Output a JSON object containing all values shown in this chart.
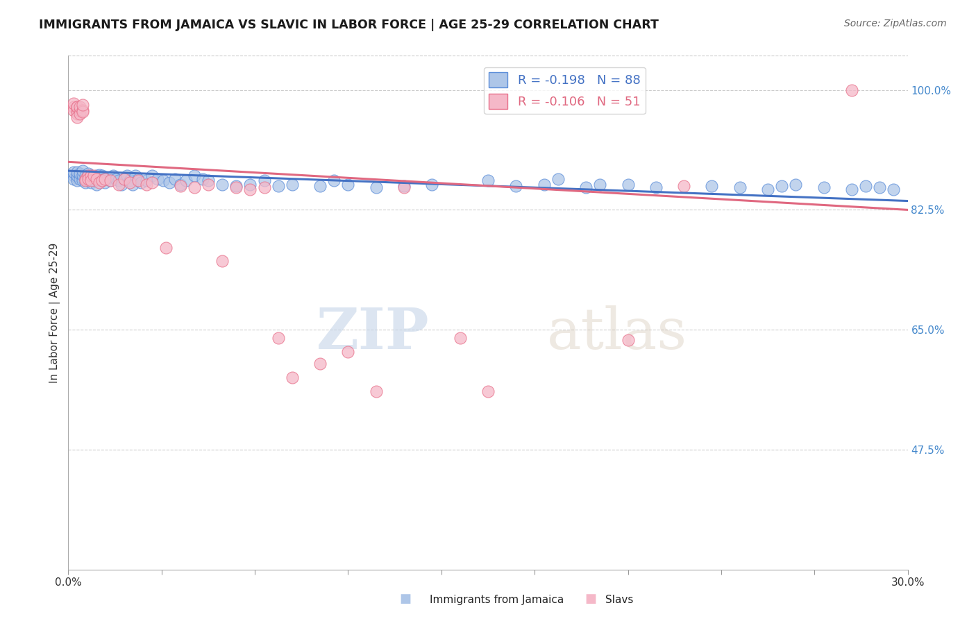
{
  "title": "IMMIGRANTS FROM JAMAICA VS SLAVIC IN LABOR FORCE | AGE 25-29 CORRELATION CHART",
  "source": "Source: ZipAtlas.com",
  "ylabel": "In Labor Force | Age 25-29",
  "x_min": 0.0,
  "x_max": 0.3,
  "y_min": 0.3,
  "y_max": 1.05,
  "right_yticks": [
    1.0,
    0.825,
    0.65,
    0.475
  ],
  "right_yticklabels": [
    "100.0%",
    "82.5%",
    "65.0%",
    "47.5%"
  ],
  "xticklabels_show": [
    "0.0%",
    "30.0%"
  ],
  "legend_blue_label": "R = -0.198   N = 88",
  "legend_pink_label": "R = -0.106   N = 51",
  "blue_color": "#aec6e8",
  "blue_edge_color": "#5b8dd9",
  "pink_color": "#f5b8c8",
  "pink_edge_color": "#e8708a",
  "blue_line_color": "#4472c4",
  "pink_line_color": "#e06880",
  "watermark_zip": "ZIP",
  "watermark_atlas": "atlas",
  "blue_scatter_x": [
    0.002,
    0.002,
    0.002,
    0.003,
    0.003,
    0.003,
    0.003,
    0.004,
    0.004,
    0.004,
    0.005,
    0.005,
    0.005,
    0.005,
    0.006,
    0.006,
    0.006,
    0.007,
    0.007,
    0.007,
    0.008,
    0.008,
    0.008,
    0.009,
    0.009,
    0.01,
    0.01,
    0.01,
    0.011,
    0.011,
    0.012,
    0.012,
    0.013,
    0.013,
    0.014,
    0.015,
    0.016,
    0.017,
    0.018,
    0.019,
    0.02,
    0.021,
    0.022,
    0.023,
    0.024,
    0.025,
    0.026,
    0.028,
    0.03,
    0.032,
    0.034,
    0.036,
    0.038,
    0.04,
    0.042,
    0.045,
    0.048,
    0.05,
    0.055,
    0.06,
    0.065,
    0.07,
    0.075,
    0.08,
    0.09,
    0.095,
    0.1,
    0.11,
    0.12,
    0.13,
    0.15,
    0.16,
    0.17,
    0.175,
    0.185,
    0.19,
    0.2,
    0.21,
    0.23,
    0.24,
    0.25,
    0.255,
    0.26,
    0.27,
    0.28,
    0.285,
    0.29,
    0.295
  ],
  "blue_scatter_y": [
    0.875,
    0.87,
    0.88,
    0.872,
    0.868,
    0.875,
    0.88,
    0.875,
    0.87,
    0.878,
    0.872,
    0.868,
    0.876,
    0.882,
    0.87,
    0.875,
    0.865,
    0.872,
    0.868,
    0.878,
    0.87,
    0.865,
    0.875,
    0.868,
    0.872,
    0.875,
    0.868,
    0.862,
    0.87,
    0.876,
    0.868,
    0.875,
    0.87,
    0.865,
    0.872,
    0.868,
    0.875,
    0.87,
    0.868,
    0.862,
    0.87,
    0.875,
    0.868,
    0.862,
    0.875,
    0.87,
    0.865,
    0.868,
    0.875,
    0.87,
    0.868,
    0.865,
    0.87,
    0.862,
    0.868,
    0.875,
    0.87,
    0.868,
    0.862,
    0.86,
    0.862,
    0.868,
    0.86,
    0.862,
    0.86,
    0.868,
    0.862,
    0.858,
    0.86,
    0.862,
    0.868,
    0.86,
    0.862,
    0.87,
    0.858,
    0.862,
    0.862,
    0.858,
    0.86,
    0.858,
    0.855,
    0.86,
    0.862,
    0.858,
    0.855,
    0.86,
    0.858,
    0.855
  ],
  "pink_scatter_x": [
    0.002,
    0.002,
    0.002,
    0.003,
    0.003,
    0.003,
    0.003,
    0.003,
    0.004,
    0.004,
    0.004,
    0.005,
    0.005,
    0.005,
    0.006,
    0.006,
    0.007,
    0.007,
    0.008,
    0.008,
    0.009,
    0.01,
    0.011,
    0.012,
    0.013,
    0.015,
    0.018,
    0.02,
    0.022,
    0.025,
    0.028,
    0.03,
    0.035,
    0.04,
    0.045,
    0.05,
    0.055,
    0.06,
    0.065,
    0.07,
    0.075,
    0.08,
    0.09,
    0.1,
    0.11,
    0.12,
    0.14,
    0.15,
    0.2,
    0.22,
    0.28
  ],
  "pink_scatter_y": [
    0.975,
    0.97,
    0.98,
    0.97,
    0.975,
    0.965,
    0.96,
    0.975,
    0.97,
    0.965,
    0.975,
    0.97,
    0.968,
    0.978,
    0.87,
    0.868,
    0.875,
    0.87,
    0.875,
    0.868,
    0.875,
    0.87,
    0.865,
    0.868,
    0.87,
    0.868,
    0.862,
    0.87,
    0.865,
    0.868,
    0.862,
    0.865,
    0.77,
    0.86,
    0.858,
    0.862,
    0.75,
    0.858,
    0.855,
    0.858,
    0.638,
    0.58,
    0.6,
    0.618,
    0.56,
    0.858,
    0.638,
    0.56,
    0.635,
    0.86,
    1.0
  ],
  "trendline_blue_x0": 0.0,
  "trendline_blue_y0": 0.882,
  "trendline_blue_x1": 0.3,
  "trendline_blue_y1": 0.838,
  "trendline_pink_x0": 0.0,
  "trendline_pink_y0": 0.895,
  "trendline_pink_x1": 0.3,
  "trendline_pink_y1": 0.825
}
